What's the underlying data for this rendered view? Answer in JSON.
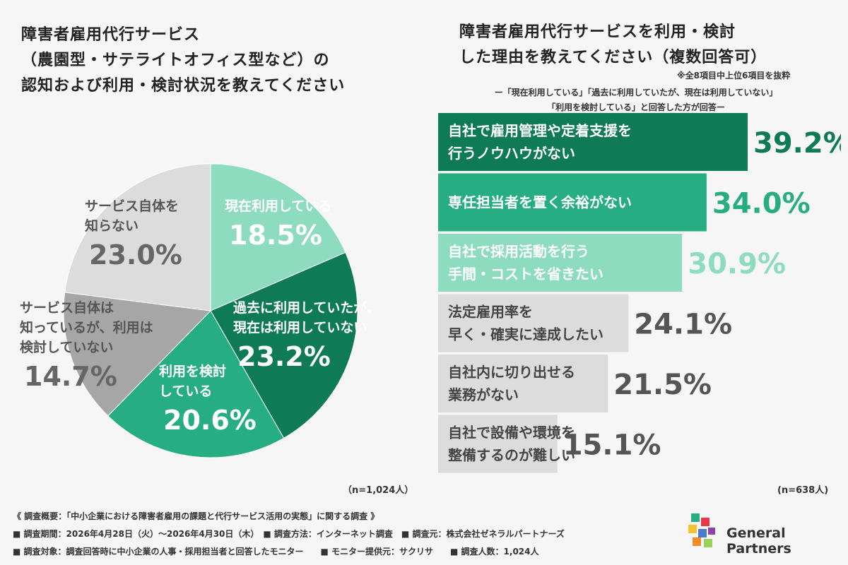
{
  "pie_chart": {
    "title_lines": [
      "障害者雇用代行サービス",
      "（農園型・サテライトオフィス型など）の",
      "認知および利用・検討状況を教えてください"
    ],
    "n_label": "（n=1,024人）"
  },
  "bar_chart": {
    "title_lines": [
      "障害者雇用代行サービスを利用・検討",
      "した理由を教えてください（複数回答可）"
    ],
    "note": "※全8項目中上位6項目を抜粋",
    "subnote_lines": [
      "ー「現在利用している」「過去に利用していたが、現在は利用していない」",
      "「利用を検討している」と回答した方が回答ー"
    ],
    "n_label": "(n=638人)"
  },
  "chart_data": [
    {
      "type": "pie",
      "title": "障害者雇用代行サービス（農園型・サテライトオフィス型など）の認知および利用・検討状況を教えてください",
      "slices": [
        {
          "label_lines": [
            "現在利用している"
          ],
          "value": 18.5,
          "value_text": "18.5%",
          "color": "#8edcc0"
        },
        {
          "label_lines": [
            "過去に利用していたが、",
            "現在は利用していない"
          ],
          "value": 23.2,
          "value_text": "23.2%",
          "color": "#0e7a56"
        },
        {
          "label_lines": [
            "利用を検討",
            "している"
          ],
          "value": 20.6,
          "value_text": "20.6%",
          "color": "#26ad82"
        },
        {
          "label_lines": [
            "サービス自体は",
            "知っているが、利用は",
            "検討していない"
          ],
          "value": 14.7,
          "value_text": "14.7%",
          "color": "#a6a6a6"
        },
        {
          "label_lines": [
            "サービス自体を",
            "知らない"
          ],
          "value": 23.0,
          "value_text": "23.0%",
          "color": "#dcdcdc"
        }
      ]
    },
    {
      "type": "bar",
      "orientation": "horizontal",
      "title": "障害者雇用代行サービスを利用・検討した理由を教えてください（複数回答可）",
      "categories": [
        [
          "自社で雇用管理や定着支援を",
          "行うノウハウがない"
        ],
        [
          "専任担当者を置く余裕がない"
        ],
        [
          "自社で採用活動を行う",
          "手間・コストを省きたい"
        ],
        [
          "法定雇用率を",
          "早く・確実に達成したい"
        ],
        [
          "自社内に切り出せる",
          "業務がない"
        ],
        [
          "自社で設備や環境を",
          "整備するのが難しい"
        ]
      ],
      "values": [
        39.2,
        34.0,
        30.9,
        24.1,
        21.5,
        15.1
      ],
      "value_labels": [
        "39.2%",
        "34.0%",
        "30.9%",
        "24.1%",
        "21.5%",
        "15.1%"
      ],
      "bar_colors": [
        "#0e7a56",
        "#26ad82",
        "#8edcc0",
        "#dcdcdc",
        "#dcdcdc",
        "#dcdcdc"
      ],
      "label_colors": [
        "#ffffff",
        "#ffffff",
        "#ffffff",
        "#444444",
        "#444444",
        "#444444"
      ],
      "value_colors": [
        "#0e7a56",
        "#26ad82",
        "#8edcc0",
        "#555555",
        "#555555",
        "#555555"
      ],
      "xlim": [
        0,
        39.2
      ]
    }
  ],
  "footer": {
    "lines": [
      "《 調査概要：「中小企業における障害者雇用の課題と代行サービス活用の実態」に関する調査 》",
      "■ 調査期間：2026年4月28日（火）～2026年4月30日（木）　■ 調査方法：インターネット調査　■ 調査元：株式会社ゼネラルパートナーズ",
      "■ 調査対象：調査回答時に中小企業の人事・採用担当者と回答したモニター　　■ モニター提供元：サクリサ　　■ 調査人数：1,024人"
    ]
  },
  "logo": {
    "text": "General Partners"
  }
}
